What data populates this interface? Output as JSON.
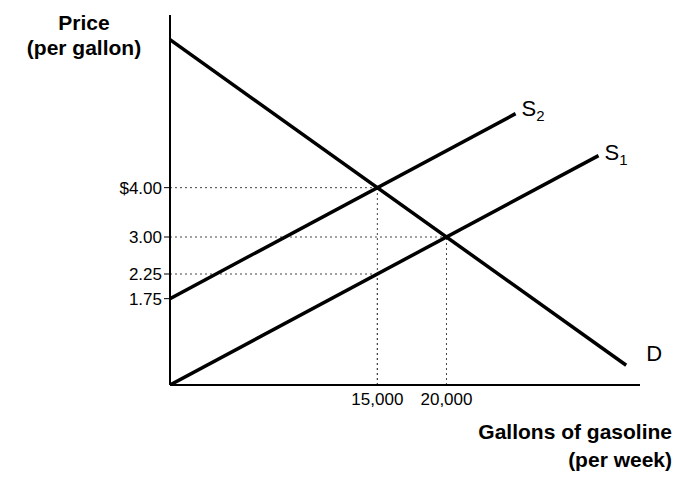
{
  "chart_data": {
    "type": "line",
    "x_label": "Gallons of gasoline\n(per week)",
    "y_label": "Price\n(per gallon)",
    "xlim": [
      0,
      34000
    ],
    "ylim": [
      0,
      7.5
    ],
    "xticks": [
      {
        "value": 15000,
        "label": "15,000"
      },
      {
        "value": 20000,
        "label": "20,000"
      }
    ],
    "yticks": [
      1.75,
      2.25,
      {
        "value": 3,
        "label": "3.00"
      },
      {
        "value": 4,
        "label": "$4.00"
      }
    ],
    "grid": false,
    "series": [
      {
        "name": "S2",
        "color": "#000000",
        "x": [
          0,
          25000
        ],
        "values": [
          1.75,
          5.5
        ]
      },
      {
        "name": "S1",
        "color": "#000000",
        "x": [
          0,
          31000
        ],
        "values": [
          0,
          4.65
        ]
      },
      {
        "name": "D",
        "color": "#000000",
        "x": [
          0,
          33000
        ],
        "values": [
          7,
          0.4
        ]
      }
    ],
    "guides": [
      {
        "x": 15000,
        "y": 4
      },
      {
        "x": 20000,
        "y": 3
      },
      {
        "x": 15000,
        "y": 2.25
      }
    ]
  }
}
